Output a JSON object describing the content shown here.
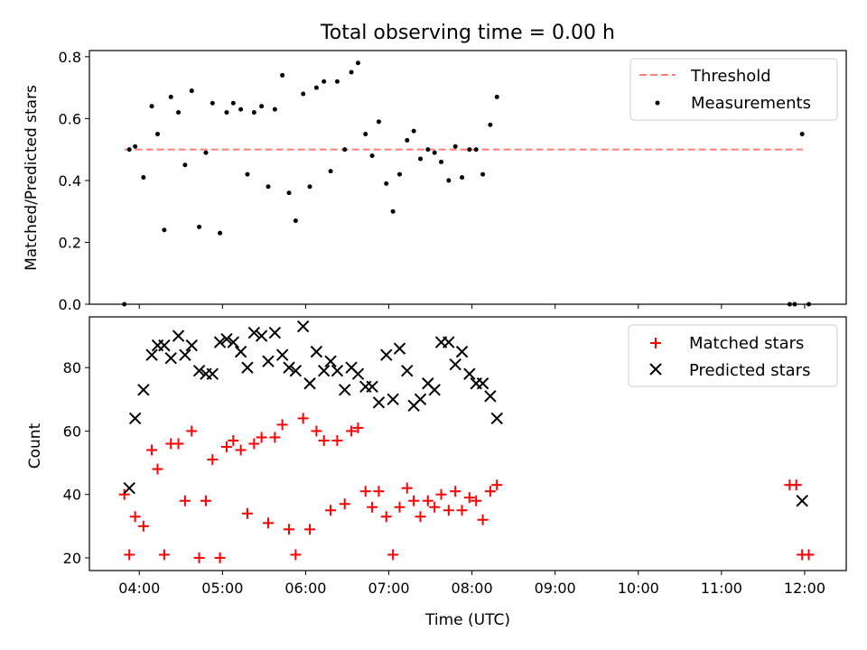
{
  "chart_data": [
    {
      "type": "scatter",
      "title": "Total observing time = 0.00 h",
      "xlabel": "",
      "ylabel": "Matched/Predicted stars",
      "ylim": [
        0,
        0.82
      ],
      "yticks": [
        0.0,
        0.2,
        0.4,
        0.6,
        0.8
      ],
      "ytick_labels": [
        "0.0",
        "0.2",
        "0.4",
        "0.6",
        "0.8"
      ],
      "legend_position": "top-right",
      "threshold": {
        "name": "Threshold",
        "value": 0.5,
        "x_range": [
          3.82,
          11.98
        ],
        "color": "#ff7f7f"
      },
      "series": [
        {
          "name": "Measurements",
          "color": "#000000",
          "points": [
            [
              3.82,
              0.0
            ],
            [
              3.88,
              0.5
            ],
            [
              3.95,
              0.51
            ],
            [
              4.05,
              0.41
            ],
            [
              4.15,
              0.64
            ],
            [
              4.22,
              0.55
            ],
            [
              4.3,
              0.24
            ],
            [
              4.38,
              0.67
            ],
            [
              4.47,
              0.62
            ],
            [
              4.55,
              0.45
            ],
            [
              4.63,
              0.69
            ],
            [
              4.72,
              0.25
            ],
            [
              4.8,
              0.49
            ],
            [
              4.88,
              0.65
            ],
            [
              4.97,
              0.23
            ],
            [
              5.05,
              0.62
            ],
            [
              5.13,
              0.65
            ],
            [
              5.22,
              0.63
            ],
            [
              5.3,
              0.42
            ],
            [
              5.38,
              0.62
            ],
            [
              5.47,
              0.64
            ],
            [
              5.55,
              0.38
            ],
            [
              5.63,
              0.63
            ],
            [
              5.72,
              0.74
            ],
            [
              5.8,
              0.36
            ],
            [
              5.88,
              0.27
            ],
            [
              5.97,
              0.68
            ],
            [
              6.05,
              0.38
            ],
            [
              6.13,
              0.7
            ],
            [
              6.22,
              0.72
            ],
            [
              6.3,
              0.43
            ],
            [
              6.38,
              0.72
            ],
            [
              6.47,
              0.5
            ],
            [
              6.55,
              0.75
            ],
            [
              6.63,
              0.78
            ],
            [
              6.72,
              0.55
            ],
            [
              6.8,
              0.48
            ],
            [
              6.88,
              0.59
            ],
            [
              6.97,
              0.39
            ],
            [
              7.05,
              0.3
            ],
            [
              7.13,
              0.42
            ],
            [
              7.22,
              0.53
            ],
            [
              7.3,
              0.56
            ],
            [
              7.38,
              0.47
            ],
            [
              7.47,
              0.5
            ],
            [
              7.55,
              0.49
            ],
            [
              7.63,
              0.46
            ],
            [
              7.72,
              0.4
            ],
            [
              7.8,
              0.51
            ],
            [
              7.88,
              0.41
            ],
            [
              7.97,
              0.5
            ],
            [
              8.05,
              0.5
            ],
            [
              8.13,
              0.42
            ],
            [
              8.22,
              0.58
            ],
            [
              8.3,
              0.67
            ],
            [
              11.82,
              0.0
            ],
            [
              11.88,
              0.0
            ],
            [
              11.97,
              0.55
            ],
            [
              12.05,
              0.0
            ]
          ]
        }
      ]
    },
    {
      "type": "scatter",
      "title": "",
      "xlabel": "Time (UTC)",
      "ylabel": "Count",
      "ylim": [
        16,
        96
      ],
      "yticks": [
        20,
        40,
        60,
        80
      ],
      "ytick_labels": [
        "20",
        "40",
        "60",
        "80"
      ],
      "xlim": [
        3.4,
        12.5
      ],
      "xticks": [
        4,
        5,
        6,
        7,
        8,
        9,
        10,
        11,
        12
      ],
      "xtick_labels": [
        "04:00",
        "05:00",
        "06:00",
        "07:00",
        "08:00",
        "09:00",
        "10:00",
        "11:00",
        "12:00"
      ],
      "legend_position": "top-right",
      "series": [
        {
          "name": "Matched stars",
          "marker": "plus",
          "color": "#ff0000",
          "points": [
            [
              3.82,
              40
            ],
            [
              3.88,
              21
            ],
            [
              3.95,
              33
            ],
            [
              4.05,
              30
            ],
            [
              4.15,
              54
            ],
            [
              4.22,
              48
            ],
            [
              4.3,
              21
            ],
            [
              4.38,
              56
            ],
            [
              4.47,
              56
            ],
            [
              4.55,
              38
            ],
            [
              4.63,
              60
            ],
            [
              4.72,
              20
            ],
            [
              4.8,
              38
            ],
            [
              4.88,
              51
            ],
            [
              4.97,
              20
            ],
            [
              5.05,
              55
            ],
            [
              5.13,
              57
            ],
            [
              5.22,
              54
            ],
            [
              5.3,
              34
            ],
            [
              5.38,
              56
            ],
            [
              5.47,
              58
            ],
            [
              5.55,
              31
            ],
            [
              5.63,
              58
            ],
            [
              5.72,
              62
            ],
            [
              5.8,
              29
            ],
            [
              5.88,
              21
            ],
            [
              5.97,
              64
            ],
            [
              6.05,
              29
            ],
            [
              6.13,
              60
            ],
            [
              6.22,
              57
            ],
            [
              6.3,
              35
            ],
            [
              6.38,
              57
            ],
            [
              6.47,
              37
            ],
            [
              6.55,
              60
            ],
            [
              6.63,
              61
            ],
            [
              6.72,
              41
            ],
            [
              6.8,
              36
            ],
            [
              6.88,
              41
            ],
            [
              6.97,
              33
            ],
            [
              7.05,
              21
            ],
            [
              7.13,
              36
            ],
            [
              7.22,
              42
            ],
            [
              7.3,
              38
            ],
            [
              7.38,
              33
            ],
            [
              7.47,
              38
            ],
            [
              7.55,
              36
            ],
            [
              7.63,
              40
            ],
            [
              7.72,
              35
            ],
            [
              7.8,
              41
            ],
            [
              7.88,
              35
            ],
            [
              7.97,
              39
            ],
            [
              8.05,
              38
            ],
            [
              8.13,
              32
            ],
            [
              8.22,
              41
            ],
            [
              8.3,
              43
            ],
            [
              11.82,
              43
            ],
            [
              11.9,
              43
            ],
            [
              11.97,
              21
            ],
            [
              12.05,
              21
            ]
          ]
        },
        {
          "name": "Predicted stars",
          "marker": "x",
          "color": "#000000",
          "points": [
            [
              3.88,
              42
            ],
            [
              3.95,
              64
            ],
            [
              4.05,
              73
            ],
            [
              4.15,
              84
            ],
            [
              4.22,
              87
            ],
            [
              4.3,
              87
            ],
            [
              4.38,
              83
            ],
            [
              4.47,
              90
            ],
            [
              4.55,
              84
            ],
            [
              4.63,
              87
            ],
            [
              4.72,
              79
            ],
            [
              4.8,
              78
            ],
            [
              4.88,
              78
            ],
            [
              4.97,
              88
            ],
            [
              5.05,
              89
            ],
            [
              5.13,
              88
            ],
            [
              5.22,
              85
            ],
            [
              5.3,
              80
            ],
            [
              5.38,
              91
            ],
            [
              5.47,
              90
            ],
            [
              5.55,
              82
            ],
            [
              5.63,
              91
            ],
            [
              5.72,
              84
            ],
            [
              5.8,
              80
            ],
            [
              5.88,
              79
            ],
            [
              5.97,
              93
            ],
            [
              6.05,
              75
            ],
            [
              6.13,
              85
            ],
            [
              6.22,
              79
            ],
            [
              6.3,
              82
            ],
            [
              6.38,
              79
            ],
            [
              6.47,
              73
            ],
            [
              6.55,
              80
            ],
            [
              6.63,
              78
            ],
            [
              6.72,
              74
            ],
            [
              6.8,
              74
            ],
            [
              6.88,
              69
            ],
            [
              6.97,
              84
            ],
            [
              7.05,
              70
            ],
            [
              7.13,
              86
            ],
            [
              7.22,
              79
            ],
            [
              7.3,
              68
            ],
            [
              7.38,
              70
            ],
            [
              7.47,
              75
            ],
            [
              7.55,
              73
            ],
            [
              7.63,
              88
            ],
            [
              7.72,
              88
            ],
            [
              7.8,
              81
            ],
            [
              7.88,
              85
            ],
            [
              7.97,
              78
            ],
            [
              8.05,
              75
            ],
            [
              8.13,
              75
            ],
            [
              8.22,
              71
            ],
            [
              8.3,
              64
            ],
            [
              11.97,
              38
            ]
          ]
        }
      ]
    }
  ]
}
